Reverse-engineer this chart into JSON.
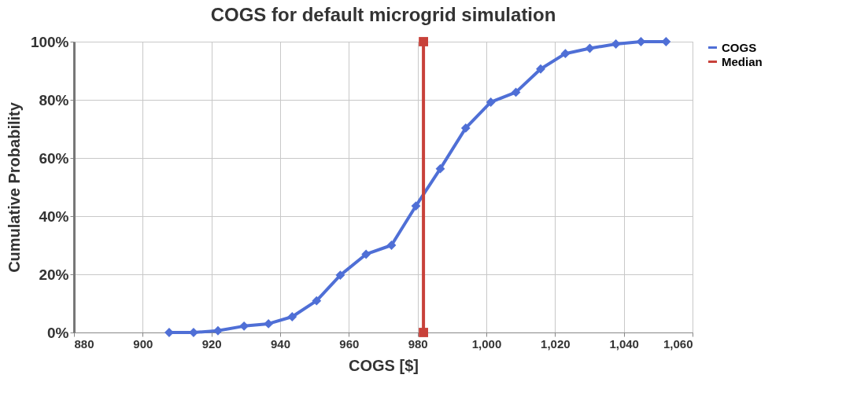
{
  "chart_data": {
    "type": "line",
    "title": "COGS for default microgrid simulation",
    "xlabel": "COGS [$]",
    "ylabel": "Cumulative Probability",
    "xlim": [
      880,
      1060
    ],
    "xticks": [
      880,
      900,
      920,
      940,
      960,
      980,
      {
        "value": 1000,
        "label": "1,000"
      },
      {
        "value": 1020,
        "label": "1,020"
      },
      {
        "value": 1040,
        "label": "1,040"
      },
      {
        "value": 1060,
        "label": "1,060"
      }
    ],
    "ylim": [
      0,
      100
    ],
    "yticks": [
      {
        "value": 0,
        "label": "0%"
      },
      {
        "value": 20,
        "label": "20%"
      },
      {
        "value": 40,
        "label": "40%"
      },
      {
        "value": 60,
        "label": "60%"
      },
      {
        "value": 80,
        "label": "80%"
      },
      {
        "value": 100,
        "label": "100%"
      }
    ],
    "grid": true,
    "legend": "right",
    "series": [
      {
        "name": "COGS",
        "color": "#4f6fd6",
        "marker": "diamond",
        "x": [
          907.7,
          914.8,
          921.9,
          929.5,
          936.6,
          943.5,
          950.6,
          957.5,
          965,
          972.4,
          979.5,
          986.6,
          994,
          1001.3,
          1008.6,
          1015.8,
          1023,
          1030.1,
          1037.7,
          1045,
          1052.3
        ],
        "values": [
          0,
          0,
          0.6,
          2.2,
          3,
          5.4,
          10.9,
          19.7,
          26.9,
          30,
          43.5,
          56.3,
          70.3,
          79.2,
          82.6,
          90.6,
          95.9,
          97.7,
          99.2,
          100,
          100
        ]
      },
      {
        "name": "Median",
        "color": "#c8413a",
        "marker": "square",
        "x": [
          981.7,
          981.7
        ],
        "values": [
          0,
          100
        ]
      }
    ]
  }
}
